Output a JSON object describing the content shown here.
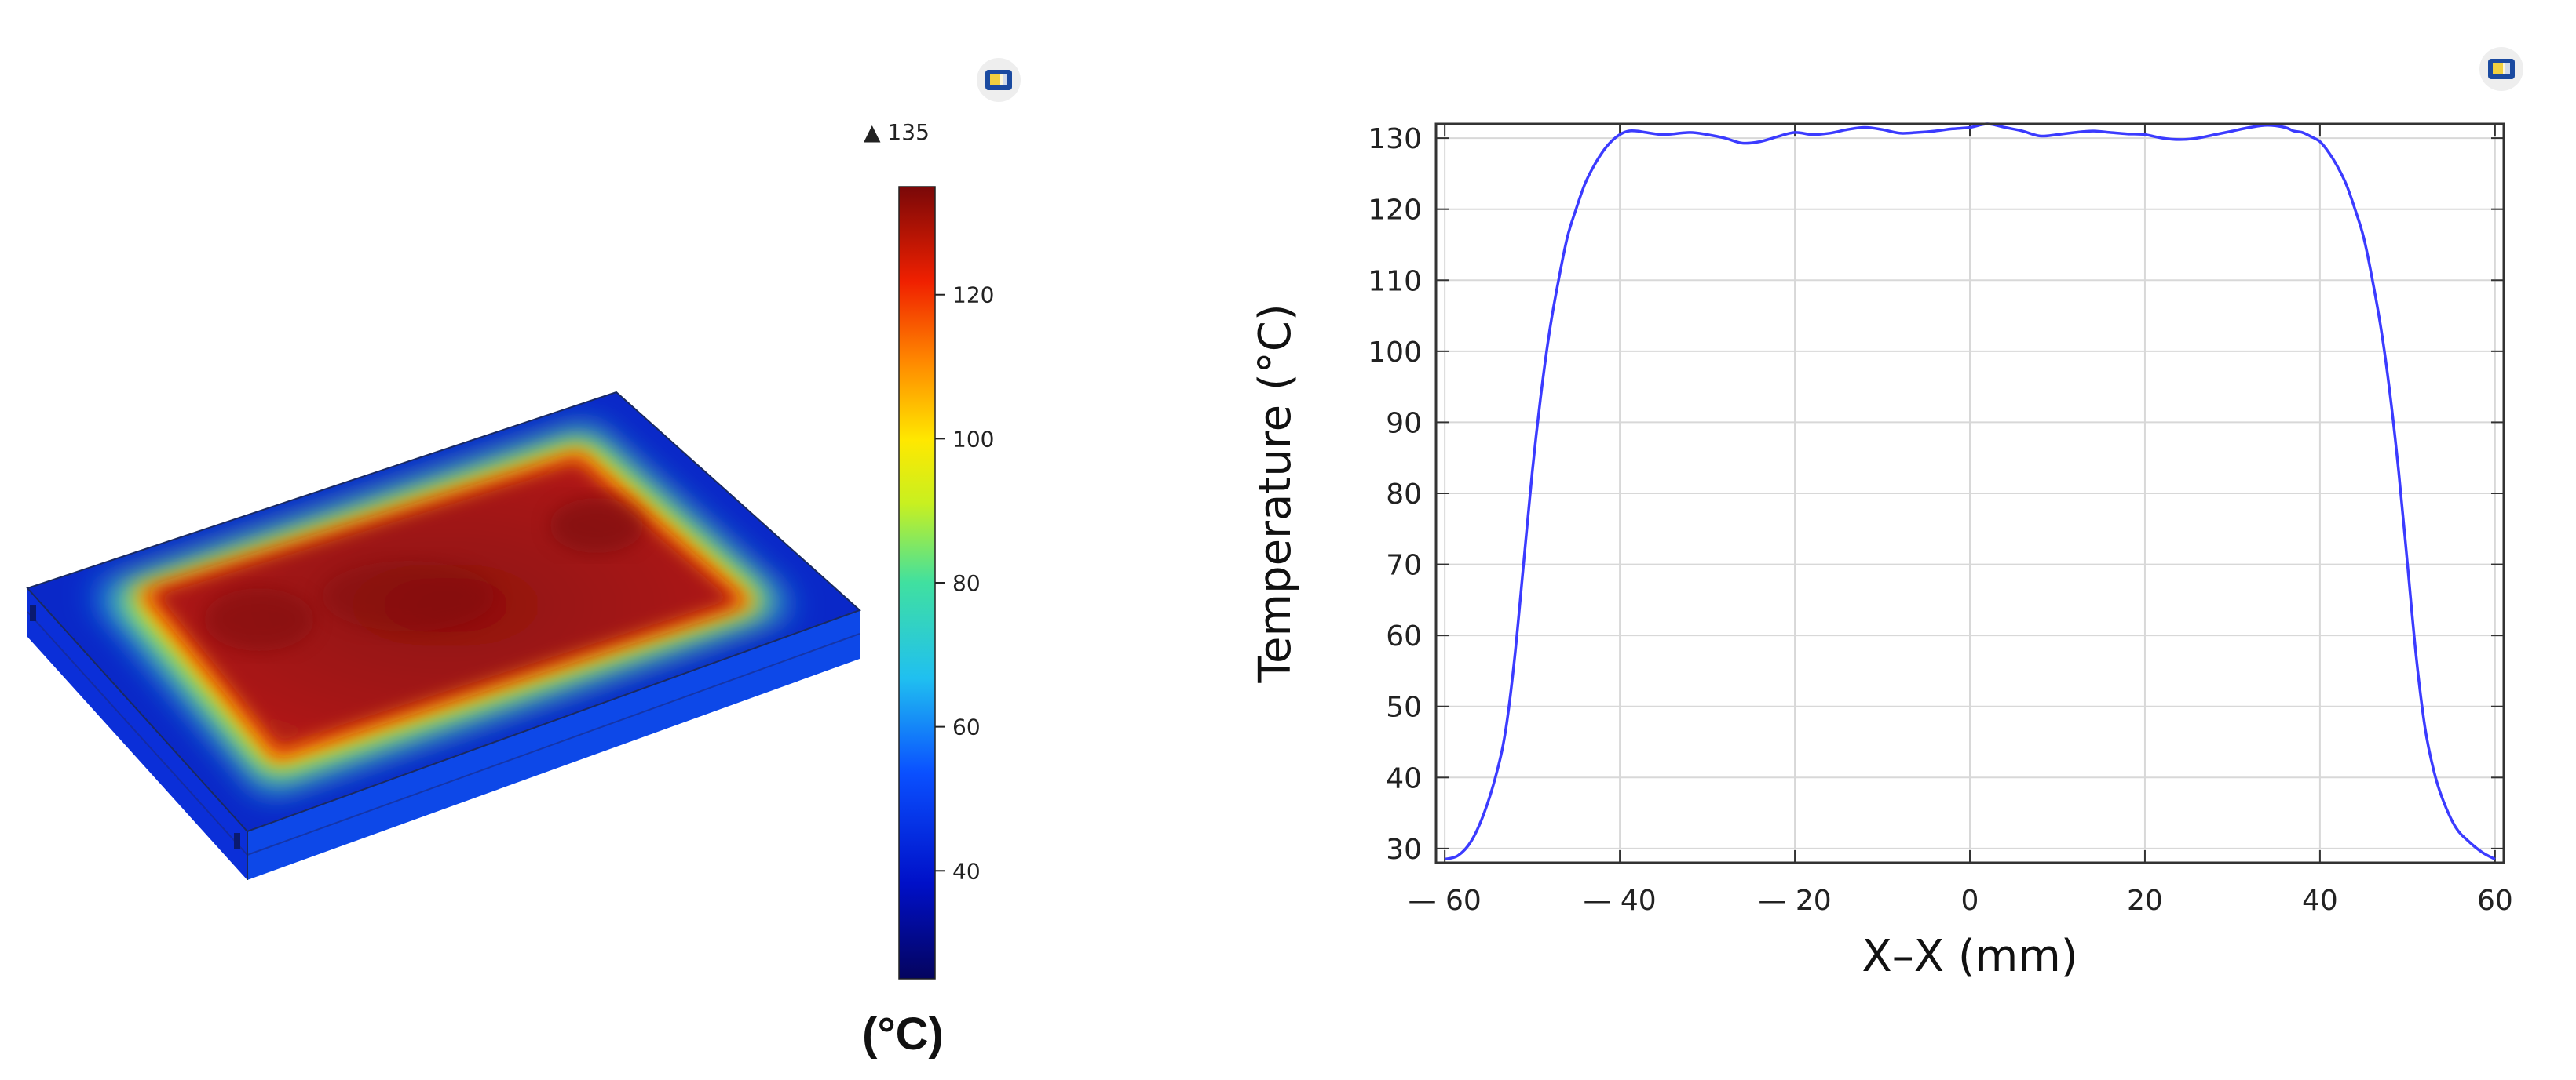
{
  "chart_data": [
    {
      "type": "heatmap",
      "colorbar": {
        "max_label": "▲ 135",
        "ticks": [
          40,
          60,
          80,
          100,
          120
        ],
        "range": [
          25,
          135
        ],
        "unit_label": "(°C)"
      },
      "colors": {
        "cold": "#0a1aa8",
        "mid_cyan": "#2fd0e0",
        "yellow": "#f4f000",
        "hot": "#a01414",
        "edge_line": "#1a2a60"
      },
      "icon": "comsol-logo-icon"
    },
    {
      "type": "line",
      "xlabel": "X–X (mm)",
      "ylabel": "Temperature (°C)",
      "xlim": [
        -61,
        61
      ],
      "ylim": [
        28,
        132
      ],
      "grid": true,
      "x_ticks": [
        -60,
        -40,
        -20,
        0,
        20,
        40,
        60
      ],
      "x_tick_labels": [
        "— 60",
        "— 40",
        "— 20",
        "0",
        "20",
        "40",
        "60"
      ],
      "y_ticks": [
        30,
        40,
        50,
        60,
        70,
        80,
        90,
        100,
        110,
        120,
        130
      ],
      "series": [
        {
          "color": "#3b3bff",
          "x": [
            -60,
            -58.5,
            -57,
            -55.5,
            -54,
            -53,
            -52,
            -51,
            -50,
            -49,
            -48,
            -47,
            -46,
            -45,
            -44,
            -43,
            -42,
            -41,
            -40,
            -39,
            -38,
            -37,
            -35,
            -32,
            -30,
            -28,
            -26,
            -24,
            -22,
            -20,
            -18,
            -16,
            -14,
            -12,
            -10,
            -8,
            -6,
            -4,
            -2,
            0,
            2,
            4,
            6,
            8,
            10,
            12,
            14,
            16,
            18,
            20,
            22,
            24,
            26,
            28,
            30,
            32,
            34,
            36,
            37,
            38,
            39,
            40,
            41,
            42,
            43,
            44,
            45,
            46,
            47,
            48,
            49,
            50,
            51,
            52,
            53,
            54,
            55.5,
            57,
            58.5,
            60
          ],
          "values": [
            28.5,
            29,
            31,
            35,
            41,
            47,
            57,
            70,
            83,
            94,
            103,
            110,
            116,
            120,
            123.5,
            126,
            128,
            129.5,
            130.5,
            131,
            131,
            130.8,
            130.5,
            130.8,
            130.5,
            130,
            129.3,
            129.5,
            130.2,
            130.8,
            130.5,
            130.7,
            131.2,
            131.5,
            131.2,
            130.7,
            130.8,
            131,
            131.3,
            131.5,
            132,
            131.5,
            131,
            130.3,
            130.5,
            130.8,
            131,
            130.8,
            130.6,
            130.5,
            130,
            129.8,
            130,
            130.5,
            131,
            131.5,
            131.8,
            131.5,
            131,
            130.8,
            130.2,
            129.5,
            128,
            126,
            123.5,
            120,
            116,
            110,
            103,
            94,
            83,
            70,
            57,
            47,
            41,
            37,
            33,
            31,
            29.5,
            28.5
          ]
        }
      ],
      "icon": "comsol-logo-icon"
    }
  ]
}
